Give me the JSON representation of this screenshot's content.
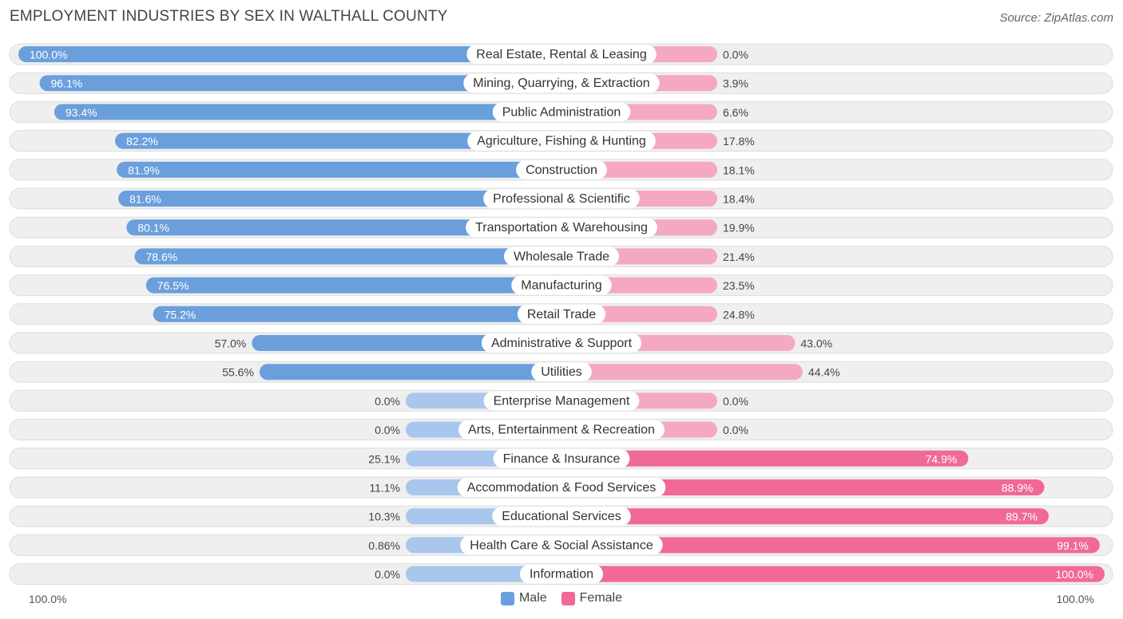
{
  "header": {
    "title": "EMPLOYMENT INDUSTRIES BY SEX IN WALTHALL COUNTY",
    "source": "Source: ZipAtlas.com"
  },
  "colors": {
    "male_strong": "#6a9fdc",
    "male_light": "#a9c7ec",
    "female_strong": "#f06a95",
    "female_light": "#f5a8c3",
    "row_bg": "#efefef",
    "row_border": "#dddddd"
  },
  "chart_data": {
    "type": "bar",
    "orientation": "horizontal-diverging",
    "title": "EMPLOYMENT INDUSTRIES BY SEX IN WALTHALL COUNTY",
    "xlim": [
      -100,
      100
    ],
    "axis_left_label": "100.0%",
    "axis_right_label": "100.0%",
    "legend": [
      "Male",
      "Female"
    ],
    "categories": [
      "Real Estate, Rental & Leasing",
      "Mining, Quarrying, & Extraction",
      "Public Administration",
      "Agriculture, Fishing & Hunting",
      "Construction",
      "Professional & Scientific",
      "Transportation & Warehousing",
      "Wholesale Trade",
      "Manufacturing",
      "Retail Trade",
      "Administrative & Support",
      "Utilities",
      "Enterprise Management",
      "Arts, Entertainment & Recreation",
      "Finance & Insurance",
      "Accommodation & Food Services",
      "Educational Services",
      "Health Care & Social Assistance",
      "Information"
    ],
    "series": [
      {
        "name": "Male",
        "values": [
          100.0,
          96.1,
          93.4,
          82.2,
          81.9,
          81.6,
          80.1,
          78.6,
          76.5,
          75.2,
          57.0,
          55.6,
          0.0,
          0.0,
          25.1,
          11.1,
          10.3,
          0.86,
          0.0
        ],
        "labels": [
          "100.0%",
          "96.1%",
          "93.4%",
          "82.2%",
          "81.9%",
          "81.6%",
          "80.1%",
          "78.6%",
          "76.5%",
          "75.2%",
          "57.0%",
          "55.6%",
          "0.0%",
          "0.0%",
          "25.1%",
          "11.1%",
          "10.3%",
          "0.86%",
          "0.0%"
        ]
      },
      {
        "name": "Female",
        "values": [
          0.0,
          3.9,
          6.6,
          17.8,
          18.1,
          18.4,
          19.9,
          21.4,
          23.5,
          24.8,
          43.0,
          44.4,
          0.0,
          0.0,
          74.9,
          88.9,
          89.7,
          99.1,
          100.0
        ],
        "labels": [
          "0.0%",
          "3.9%",
          "6.6%",
          "17.8%",
          "18.1%",
          "18.4%",
          "19.9%",
          "21.4%",
          "23.5%",
          "24.8%",
          "43.0%",
          "44.4%",
          "0.0%",
          "0.0%",
          "74.9%",
          "88.9%",
          "89.7%",
          "99.1%",
          "100.0%"
        ]
      }
    ]
  }
}
